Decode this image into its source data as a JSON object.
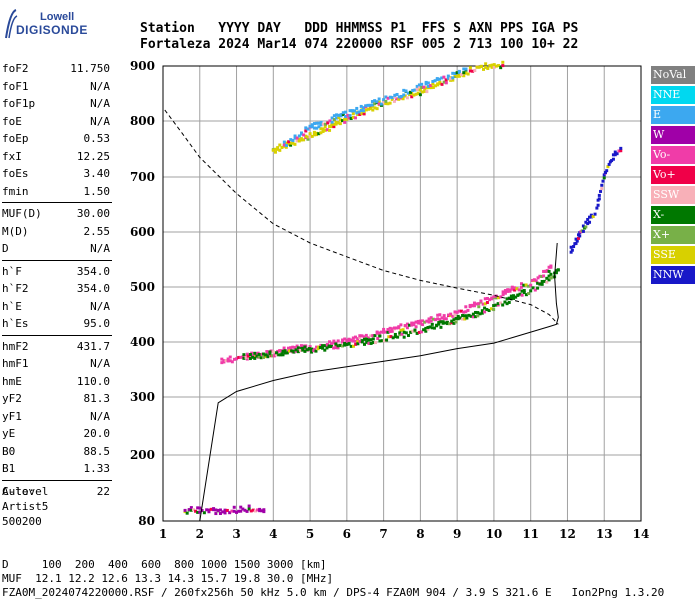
{
  "logo": {
    "line1": "Lowell",
    "line2": "DIGISONDE"
  },
  "header": {
    "line1": "Station   YYYY DAY   DDD HHMMSS P1  FFS S AXN PPS IGA PS",
    "line2": "Fortaleza 2024 Mar14 074 220000 RSF 005 2 713 100 10+ 22"
  },
  "params": {
    "group1": [
      {
        "k": "foF2",
        "v": "11.750"
      },
      {
        "k": "foF1",
        "v": "N/A"
      },
      {
        "k": "foF1p",
        "v": "N/A"
      },
      {
        "k": "foE",
        "v": "N/A"
      },
      {
        "k": "foEp",
        "v": "0.53"
      },
      {
        "k": "fxI",
        "v": "12.25"
      },
      {
        "k": "foEs",
        "v": "3.40"
      },
      {
        "k": "fmin",
        "v": "1.50"
      }
    ],
    "group2": [
      {
        "k": "MUF(D)",
        "v": "30.00"
      },
      {
        "k": "M(D)",
        "v": "2.55"
      },
      {
        "k": "D",
        "v": "N/A"
      }
    ],
    "group3": [
      {
        "k": "h`F",
        "v": "354.0"
      },
      {
        "k": "h`F2",
        "v": "354.0"
      },
      {
        "k": "h`E",
        "v": "N/A"
      },
      {
        "k": "h`Es",
        "v": "95.0"
      }
    ],
    "group4": [
      {
        "k": "hmF2",
        "v": "431.7"
      },
      {
        "k": "hmF1",
        "v": "N/A"
      },
      {
        "k": "hmE",
        "v": "110.0"
      },
      {
        "k": "yF2",
        "v": "81.3"
      },
      {
        "k": "yF1",
        "v": "N/A"
      },
      {
        "k": "yE",
        "v": "20.0"
      },
      {
        "k": "B0",
        "v": "88.5"
      },
      {
        "k": "B1",
        "v": "1.33"
      }
    ],
    "group5": [
      {
        "k": "C-level",
        "v": "22"
      }
    ]
  },
  "auto": {
    "line1": "Auto:",
    "line2": "Artist5",
    "line3": "500200"
  },
  "footer": {
    "line1": "D     100  200  400  600  800 1000 1500 3000 [km]",
    "line2": "MUF  12.1 12.2 12.6 13.3 14.3 15.7 19.8 30.0 [MHz]",
    "line3": "FZA0M_2024074220000.RSF / 260fx256h 50 kHz 5.0 km / DPS-4 FZA0M 904 / 3.9 S 321.6 E   Ion2Png 1.3.20"
  },
  "legend": [
    {
      "label": "NoVal",
      "color": "#808080"
    },
    {
      "label": "NNE",
      "color": "#00d8f0"
    },
    {
      "label": "E",
      "color": "#3ca8f0"
    },
    {
      "label": "W",
      "color": "#a000a8"
    },
    {
      "label": "Vo-",
      "color": "#f03ca8"
    },
    {
      "label": "Vo+",
      "color": "#f00048"
    },
    {
      "label": "SSW",
      "color": "#f8b0b8"
    },
    {
      "label": "X-",
      "color": "#007800"
    },
    {
      "label": "X+",
      "color": "#78b048"
    },
    {
      "label": "SSE",
      "color": "#d8d000"
    },
    {
      "label": "NNW",
      "color": "#1818c8"
    }
  ],
  "chart_data": {
    "type": "scatter",
    "title": "",
    "xlabel": "",
    "ylabel": "",
    "xlim": [
      1,
      14
    ],
    "ylim": [
      80,
      900
    ],
    "x_ticks": [
      1,
      2,
      3,
      4,
      5,
      6,
      7,
      8,
      9,
      10,
      11,
      12,
      13,
      14
    ],
    "y_ticks": [
      80,
      200,
      300,
      400,
      500,
      600,
      700,
      800,
      900
    ],
    "grid": true,
    "legend_position": "right",
    "traces": [
      {
        "name": "F2-trace O-mode",
        "color": "#f03ca8",
        "points": [
          [
            2.6,
            362
          ],
          [
            3,
            368
          ],
          [
            4,
            378
          ],
          [
            5,
            388
          ],
          [
            6,
            398
          ],
          [
            7,
            415
          ],
          [
            8,
            432
          ],
          [
            9,
            450
          ],
          [
            10,
            478
          ],
          [
            10.5,
            492
          ],
          [
            11,
            505
          ],
          [
            11.3,
            518
          ],
          [
            11.6,
            535
          ]
        ]
      },
      {
        "name": "F2-trace X-mode",
        "color": "#007800",
        "points": [
          [
            3.2,
            370
          ],
          [
            4.5,
            380
          ],
          [
            6,
            392
          ],
          [
            7.5,
            410
          ],
          [
            8.5,
            428
          ],
          [
            9.5,
            448
          ],
          [
            10.3,
            470
          ],
          [
            11,
            492
          ],
          [
            11.5,
            512
          ],
          [
            11.8,
            530
          ]
        ]
      },
      {
        "name": "Second-hop trace",
        "color": "#d8d000",
        "points": [
          [
            4,
            745
          ],
          [
            5,
            770
          ],
          [
            6,
            800
          ],
          [
            7,
            830
          ],
          [
            8,
            850
          ],
          [
            9,
            880
          ],
          [
            9.6,
            895
          ],
          [
            10.3,
            900
          ]
        ]
      },
      {
        "name": "Second-hop upper",
        "color": "#3ca8f0",
        "points": [
          [
            4.3,
            755
          ],
          [
            5,
            785
          ],
          [
            5.6,
            800
          ],
          [
            7,
            835
          ],
          [
            8.4,
            870
          ],
          [
            9.3,
            890
          ]
        ]
      },
      {
        "name": "Es trace",
        "color": "#a000a8",
        "points": [
          [
            1.6,
            95
          ],
          [
            2,
            98
          ],
          [
            2.5,
            96
          ],
          [
            3,
            98
          ],
          [
            3.4,
            100
          ],
          [
            3.8,
            95
          ]
        ]
      },
      {
        "name": "High-frequency echoes",
        "color": "#1818c8",
        "points": [
          [
            12.1,
            565
          ],
          [
            12.3,
            590
          ],
          [
            12.5,
            610
          ],
          [
            12.8,
            640
          ],
          [
            13,
            700
          ],
          [
            13.2,
            730
          ],
          [
            13.5,
            750
          ]
        ]
      }
    ],
    "profile_solid": [
      [
        1,
        80
      ],
      [
        2,
        80
      ],
      [
        2.5,
        290
      ],
      [
        3,
        310
      ],
      [
        4,
        330
      ],
      [
        5,
        345
      ],
      [
        6,
        355
      ],
      [
        7,
        365
      ],
      [
        8,
        375
      ],
      [
        9,
        388
      ],
      [
        10,
        398
      ],
      [
        10.5,
        408
      ],
      [
        11,
        418
      ],
      [
        11.5,
        428
      ],
      [
        11.7,
        432
      ],
      [
        11.75,
        445
      ],
      [
        11.7,
        470
      ],
      [
        11.65,
        520
      ],
      [
        11.72,
        580
      ]
    ],
    "profile_dashed": [
      [
        1.05,
        820
      ],
      [
        1.5,
        780
      ],
      [
        2,
        735
      ],
      [
        3,
        670
      ],
      [
        4,
        615
      ],
      [
        5,
        580
      ],
      [
        6,
        555
      ],
      [
        7,
        530
      ],
      [
        8,
        512
      ],
      [
        9,
        498
      ],
      [
        10,
        485
      ],
      [
        11,
        468
      ],
      [
        11.5,
        450
      ],
      [
        11.75,
        432
      ]
    ]
  }
}
